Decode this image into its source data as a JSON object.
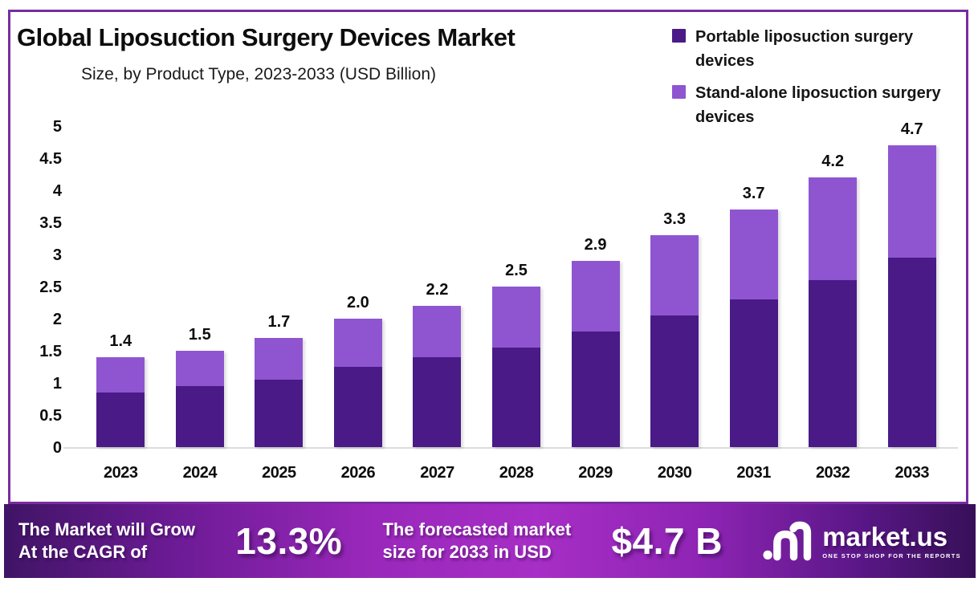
{
  "header": {
    "title": "Global Liposuction Surgery Devices Market",
    "subtitle": "Size, by Product Type, 2023-2033 (USD Billion)"
  },
  "legend": {
    "items": [
      {
        "label": "Portable liposuction surgery devices",
        "color": "#4a1a87"
      },
      {
        "label": "Stand-alone liposuction surgery devices",
        "color": "#8f55d1"
      }
    ]
  },
  "chart_data": {
    "type": "bar",
    "stacked": true,
    "title": "Global Liposuction Surgery Devices Market Size, by Product Type, 2023-2033 (USD Billion)",
    "categories": [
      "2023",
      "2024",
      "2025",
      "2026",
      "2027",
      "2028",
      "2029",
      "2030",
      "2031",
      "2032",
      "2033"
    ],
    "series": [
      {
        "name": "Portable liposuction surgery devices",
        "color": "#4a1a87",
        "values": [
          0.85,
          0.95,
          1.05,
          1.25,
          1.4,
          1.55,
          1.8,
          2.05,
          2.3,
          2.6,
          2.95
        ]
      },
      {
        "name": "Stand-alone liposuction surgery devices",
        "color": "#8f55d1",
        "values": [
          0.55,
          0.55,
          0.65,
          0.75,
          0.8,
          0.95,
          1.1,
          1.25,
          1.4,
          1.6,
          1.75
        ]
      }
    ],
    "totals": [
      1.4,
      1.5,
      1.7,
      2.0,
      2.2,
      2.5,
      2.9,
      3.3,
      3.7,
      4.2,
      4.7
    ],
    "total_labels": [
      "1.4",
      "1.5",
      "1.7",
      "2.0",
      "2.2",
      "2.5",
      "2.9",
      "3.3",
      "3.7",
      "4.2",
      "4.7"
    ],
    "xlabel": "",
    "ylabel": "",
    "ylim": [
      0,
      5
    ],
    "yticks": [
      0,
      0.5,
      1,
      1.5,
      2,
      2.5,
      3,
      3.5,
      4,
      4.5,
      5
    ],
    "grid": false,
    "legend_position": "top-right"
  },
  "banner": {
    "growth_text_line1": "The Market will Grow",
    "growth_text_line2": "At the CAGR of",
    "cagr_value": "13.3%",
    "forecast_text_line1": "The forecasted market",
    "forecast_text_line2": "size for 2033 in USD",
    "forecast_value": "$4.7 B",
    "brand_name": "market.us",
    "brand_tagline": "ONE STOP SHOP FOR THE REPORTS"
  },
  "colors": {
    "frame_border": "#7b2c9e",
    "series_portable": "#4a1a87",
    "series_standalone": "#8f55d1",
    "axis_line": "#dcdcdc",
    "banner_gradient_left": "#42156b",
    "banner_gradient_mid": "#a32bc0",
    "banner_gradient_right": "#371058",
    "text": "#111111"
  }
}
